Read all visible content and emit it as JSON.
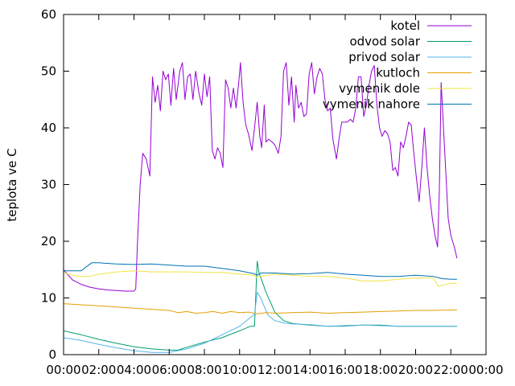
{
  "chart_data": {
    "type": "line",
    "title": "",
    "xlabel": "",
    "ylabel": "teplota ve C",
    "ylim": [
      0,
      60
    ],
    "xlim_hours": [
      0,
      24
    ],
    "y_ticks": [
      0,
      10,
      20,
      30,
      40,
      50,
      60
    ],
    "x_ticks": [
      {
        "h": 0,
        "label": "00:00"
      },
      {
        "h": 2,
        "label": "02:00"
      },
      {
        "h": 4,
        "label": "04:00"
      },
      {
        "h": 6,
        "label": "06:00"
      },
      {
        "h": 8,
        "label": "08:00"
      },
      {
        "h": 10,
        "label": "10:00"
      },
      {
        "h": 12,
        "label": "12:00"
      },
      {
        "h": 14,
        "label": "14:00"
      },
      {
        "h": 16,
        "label": "16:00"
      },
      {
        "h": 18,
        "label": "18:00"
      },
      {
        "h": 20,
        "label": "20:00"
      },
      {
        "h": 22,
        "label": "22:00"
      },
      {
        "h": 24,
        "label": "00:00"
      }
    ],
    "grid": false,
    "legend_position": "top-right",
    "series": [
      {
        "name": "kotel",
        "color": "#9400d3",
        "points": [
          [
            0.0,
            15.0
          ],
          [
            0.5,
            13.2
          ],
          [
            1.0,
            12.4
          ],
          [
            1.5,
            11.9
          ],
          [
            2.0,
            11.6
          ],
          [
            2.5,
            11.4
          ],
          [
            3.0,
            11.3
          ],
          [
            3.5,
            11.2
          ],
          [
            4.0,
            11.2
          ],
          [
            4.1,
            11.6
          ],
          [
            4.2,
            20.0
          ],
          [
            4.35,
            30.0
          ],
          [
            4.5,
            35.5
          ],
          [
            4.7,
            34.5
          ],
          [
            4.9,
            31.5
          ],
          [
            5.05,
            49.0
          ],
          [
            5.2,
            44.5
          ],
          [
            5.35,
            47.5
          ],
          [
            5.5,
            43.0
          ],
          [
            5.65,
            50.0
          ],
          [
            5.8,
            48.5
          ],
          [
            5.95,
            49.5
          ],
          [
            6.1,
            44.0
          ],
          [
            6.25,
            50.5
          ],
          [
            6.4,
            45.0
          ],
          [
            6.6,
            50.0
          ],
          [
            6.75,
            51.5
          ],
          [
            6.9,
            45.0
          ],
          [
            7.05,
            49.0
          ],
          [
            7.2,
            49.5
          ],
          [
            7.35,
            45.0
          ],
          [
            7.5,
            50.0
          ],
          [
            7.7,
            46.0
          ],
          [
            7.85,
            44.0
          ],
          [
            8.0,
            49.5
          ],
          [
            8.15,
            45.5
          ],
          [
            8.3,
            49.0
          ],
          [
            8.45,
            36.0
          ],
          [
            8.6,
            34.5
          ],
          [
            8.75,
            36.5
          ],
          [
            8.9,
            35.5
          ],
          [
            9.05,
            33.0
          ],
          [
            9.2,
            48.5
          ],
          [
            9.35,
            47.0
          ],
          [
            9.5,
            43.5
          ],
          [
            9.65,
            47.0
          ],
          [
            9.8,
            43.5
          ],
          [
            9.95,
            48.0
          ],
          [
            10.05,
            51.5
          ],
          [
            10.2,
            44.5
          ],
          [
            10.35,
            40.5
          ],
          [
            10.5,
            39.0
          ],
          [
            10.7,
            36.0
          ],
          [
            10.85,
            40.0
          ],
          [
            11.0,
            44.5
          ],
          [
            11.15,
            38.5
          ],
          [
            11.25,
            36.5
          ],
          [
            11.4,
            44.0
          ],
          [
            11.5,
            37.5
          ],
          [
            11.65,
            38.0
          ],
          [
            11.85,
            37.5
          ],
          [
            12.0,
            37.0
          ],
          [
            12.2,
            35.5
          ],
          [
            12.35,
            38.5
          ],
          [
            12.5,
            50.0
          ],
          [
            12.65,
            51.5
          ],
          [
            12.8,
            44.0
          ],
          [
            12.95,
            49.0
          ],
          [
            13.1,
            41.0
          ],
          [
            13.2,
            47.5
          ],
          [
            13.35,
            43.5
          ],
          [
            13.5,
            44.5
          ],
          [
            13.65,
            42.0
          ],
          [
            13.8,
            42.5
          ],
          [
            13.95,
            49.5
          ],
          [
            14.1,
            51.5
          ],
          [
            14.25,
            46.0
          ],
          [
            14.4,
            49.0
          ],
          [
            14.55,
            50.5
          ],
          [
            14.7,
            49.5
          ],
          [
            14.85,
            45.0
          ],
          [
            15.0,
            43.0
          ],
          [
            15.15,
            43.5
          ],
          [
            15.3,
            38.0
          ],
          [
            15.5,
            34.5
          ],
          [
            15.65,
            38.0
          ],
          [
            15.8,
            41.0
          ],
          [
            16.1,
            41.0
          ],
          [
            16.3,
            41.5
          ],
          [
            16.45,
            41.0
          ],
          [
            16.6,
            43.5
          ],
          [
            16.75,
            49.0
          ],
          [
            16.9,
            49.0
          ],
          [
            17.05,
            42.0
          ],
          [
            17.2,
            44.0
          ],
          [
            17.35,
            47.5
          ],
          [
            17.5,
            50.0
          ],
          [
            17.65,
            51.0
          ],
          [
            17.8,
            44.0
          ],
          [
            17.95,
            40.0
          ],
          [
            18.1,
            38.5
          ],
          [
            18.25,
            39.5
          ],
          [
            18.4,
            39.0
          ],
          [
            18.55,
            37.5
          ],
          [
            18.7,
            32.5
          ],
          [
            18.85,
            33.0
          ],
          [
            19.0,
            31.5
          ],
          [
            19.15,
            37.5
          ],
          [
            19.3,
            36.5
          ],
          [
            19.45,
            38.5
          ],
          [
            19.6,
            41.0
          ],
          [
            19.75,
            40.5
          ],
          [
            19.9,
            35.5
          ],
          [
            20.05,
            31.0
          ],
          [
            20.2,
            27.0
          ],
          [
            20.35,
            33.0
          ],
          [
            20.5,
            40.0
          ],
          [
            20.65,
            33.0
          ],
          [
            20.8,
            28.0
          ],
          [
            20.95,
            24.0
          ],
          [
            21.1,
            21.0
          ],
          [
            21.25,
            19.0
          ],
          [
            21.35,
            29.0
          ],
          [
            21.45,
            48.0
          ],
          [
            21.55,
            42.0
          ],
          [
            21.7,
            33.0
          ],
          [
            21.85,
            24.0
          ],
          [
            22.0,
            21.0
          ],
          [
            22.2,
            19.0
          ],
          [
            22.35,
            17.0
          ]
        ]
      },
      {
        "name": "odvod solar",
        "color": "#009e73",
        "points": [
          [
            0.0,
            4.2
          ],
          [
            1.0,
            3.5
          ],
          [
            2.0,
            2.7
          ],
          [
            3.0,
            2.0
          ],
          [
            4.0,
            1.4
          ],
          [
            5.0,
            1.0
          ],
          [
            6.0,
            0.8
          ],
          [
            6.5,
            0.8
          ],
          [
            7.0,
            1.3
          ],
          [
            8.0,
            2.2
          ],
          [
            9.0,
            3.0
          ],
          [
            10.0,
            4.2
          ],
          [
            10.6,
            5.0
          ],
          [
            10.85,
            5.0
          ],
          [
            11.0,
            16.5
          ],
          [
            11.1,
            14.5
          ],
          [
            11.5,
            11.0
          ],
          [
            12.0,
            7.5
          ],
          [
            12.5,
            6.0
          ],
          [
            13.0,
            5.5
          ],
          [
            14.0,
            5.2
          ],
          [
            15.0,
            5.0
          ],
          [
            16.0,
            5.1
          ],
          [
            17.0,
            5.2
          ],
          [
            18.0,
            5.2
          ],
          [
            19.0,
            5.0
          ],
          [
            20.0,
            5.0
          ],
          [
            21.0,
            5.0
          ],
          [
            22.35,
            5.0
          ]
        ]
      },
      {
        "name": "privod solar",
        "color": "#56b4e9",
        "points": [
          [
            0.0,
            3.0
          ],
          [
            1.0,
            2.5
          ],
          [
            2.0,
            1.8
          ],
          [
            3.0,
            1.2
          ],
          [
            4.0,
            0.7
          ],
          [
            5.0,
            0.4
          ],
          [
            6.0,
            0.4
          ],
          [
            7.0,
            1.0
          ],
          [
            8.0,
            2.0
          ],
          [
            9.0,
            3.5
          ],
          [
            10.0,
            5.0
          ],
          [
            10.7,
            6.8
          ],
          [
            10.85,
            7.0
          ],
          [
            11.0,
            11.0
          ],
          [
            11.2,
            10.0
          ],
          [
            11.6,
            7.0
          ],
          [
            12.0,
            6.0
          ],
          [
            12.5,
            5.6
          ],
          [
            13.0,
            5.4
          ],
          [
            14.0,
            5.3
          ],
          [
            15.0,
            5.0
          ],
          [
            16.0,
            5.0
          ],
          [
            17.0,
            5.2
          ],
          [
            18.0,
            5.1
          ],
          [
            19.0,
            5.0
          ],
          [
            20.0,
            5.0
          ],
          [
            21.0,
            5.0
          ],
          [
            22.35,
            5.0
          ]
        ]
      },
      {
        "name": "kutloch",
        "color": "#e69f00",
        "points": [
          [
            0.0,
            9.0
          ],
          [
            1.0,
            8.8
          ],
          [
            2.0,
            8.6
          ],
          [
            3.0,
            8.4
          ],
          [
            4.0,
            8.2
          ],
          [
            5.0,
            8.0
          ],
          [
            6.0,
            7.8
          ],
          [
            6.5,
            7.4
          ],
          [
            7.0,
            7.6
          ],
          [
            7.5,
            7.3
          ],
          [
            8.0,
            7.4
          ],
          [
            8.5,
            7.6
          ],
          [
            9.0,
            7.3
          ],
          [
            9.5,
            7.6
          ],
          [
            10.0,
            7.4
          ],
          [
            10.5,
            7.5
          ],
          [
            11.0,
            7.2
          ],
          [
            11.5,
            7.4
          ],
          [
            12.0,
            7.3
          ],
          [
            13.0,
            7.4
          ],
          [
            14.0,
            7.5
          ],
          [
            15.0,
            7.3
          ],
          [
            16.0,
            7.4
          ],
          [
            17.0,
            7.5
          ],
          [
            18.0,
            7.6
          ],
          [
            19.0,
            7.7
          ],
          [
            20.0,
            7.8
          ],
          [
            21.0,
            7.8
          ],
          [
            22.35,
            7.9
          ]
        ]
      },
      {
        "name": "vymenik dole",
        "color": "#f0e442",
        "points": [
          [
            0.0,
            14.5
          ],
          [
            0.5,
            14.0
          ],
          [
            1.0,
            13.8
          ],
          [
            1.5,
            13.8
          ],
          [
            2.0,
            14.2
          ],
          [
            3.0,
            14.6
          ],
          [
            4.0,
            14.8
          ],
          [
            5.0,
            14.6
          ],
          [
            6.0,
            14.6
          ],
          [
            7.0,
            14.6
          ],
          [
            8.0,
            14.5
          ],
          [
            9.0,
            14.5
          ],
          [
            10.0,
            14.2
          ],
          [
            10.8,
            14.0
          ],
          [
            11.0,
            13.6
          ],
          [
            11.1,
            13.8
          ],
          [
            12.0,
            14.2
          ],
          [
            13.0,
            14.0
          ],
          [
            14.0,
            13.8
          ],
          [
            15.0,
            13.8
          ],
          [
            16.0,
            13.5
          ],
          [
            17.0,
            13.0
          ],
          [
            18.0,
            13.0
          ],
          [
            19.0,
            13.3
          ],
          [
            20.0,
            13.5
          ],
          [
            21.0,
            13.5
          ],
          [
            21.3,
            12.0
          ],
          [
            21.6,
            12.3
          ],
          [
            22.0,
            12.6
          ],
          [
            22.35,
            12.6
          ]
        ]
      },
      {
        "name": "vymenik nahore",
        "color": "#0072b2",
        "points": [
          [
            0.0,
            14.8
          ],
          [
            0.5,
            14.8
          ],
          [
            1.0,
            14.8
          ],
          [
            1.3,
            15.5
          ],
          [
            1.6,
            16.2
          ],
          [
            2.0,
            16.2
          ],
          [
            3.0,
            16.0
          ],
          [
            4.0,
            15.9
          ],
          [
            5.0,
            16.0
          ],
          [
            6.0,
            15.8
          ],
          [
            7.0,
            15.6
          ],
          [
            8.0,
            15.6
          ],
          [
            9.0,
            15.2
          ],
          [
            10.0,
            14.8
          ],
          [
            10.8,
            14.3
          ],
          [
            11.0,
            14.0
          ],
          [
            11.2,
            14.4
          ],
          [
            12.0,
            14.4
          ],
          [
            13.0,
            14.2
          ],
          [
            14.0,
            14.3
          ],
          [
            15.0,
            14.5
          ],
          [
            16.0,
            14.2
          ],
          [
            17.0,
            14.0
          ],
          [
            18.0,
            13.8
          ],
          [
            19.0,
            13.8
          ],
          [
            20.0,
            14.0
          ],
          [
            21.0,
            13.8
          ],
          [
            21.5,
            13.4
          ],
          [
            22.0,
            13.3
          ],
          [
            22.35,
            13.3
          ]
        ]
      }
    ]
  }
}
